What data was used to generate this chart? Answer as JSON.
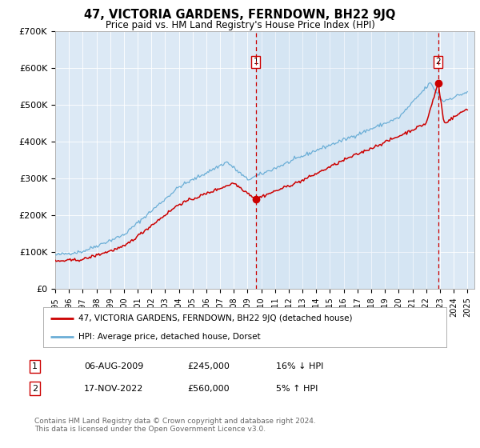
{
  "title": "47, VICTORIA GARDENS, FERNDOWN, BH22 9JQ",
  "subtitle": "Price paid vs. HM Land Registry's House Price Index (HPI)",
  "bg_color": "#dce9f5",
  "hpi_color": "#6baed6",
  "price_color": "#cc0000",
  "ylim": [
    0,
    700000
  ],
  "yticks": [
    0,
    100000,
    200000,
    300000,
    400000,
    500000,
    600000,
    700000
  ],
  "ytick_labels": [
    "£0",
    "£100K",
    "£200K",
    "£300K",
    "£400K",
    "£500K",
    "£600K",
    "£700K"
  ],
  "year_start": 1995,
  "year_end": 2025,
  "marker1_date": 2009.6,
  "marker1_value": 245000,
  "marker2_date": 2022.88,
  "marker2_value": 560000,
  "legend_line1": "47, VICTORIA GARDENS, FERNDOWN, BH22 9JQ (detached house)",
  "legend_line2": "HPI: Average price, detached house, Dorset",
  "footer": "Contains HM Land Registry data © Crown copyright and database right 2024.\nThis data is licensed under the Open Government Licence v3.0.",
  "annotation1_num": "1",
  "annotation1_date": "06-AUG-2009",
  "annotation1_price": "£245,000",
  "annotation1_hpi": "16% ↓ HPI",
  "annotation2_num": "2",
  "annotation2_date": "17-NOV-2022",
  "annotation2_price": "£560,000",
  "annotation2_hpi": "5% ↑ HPI"
}
